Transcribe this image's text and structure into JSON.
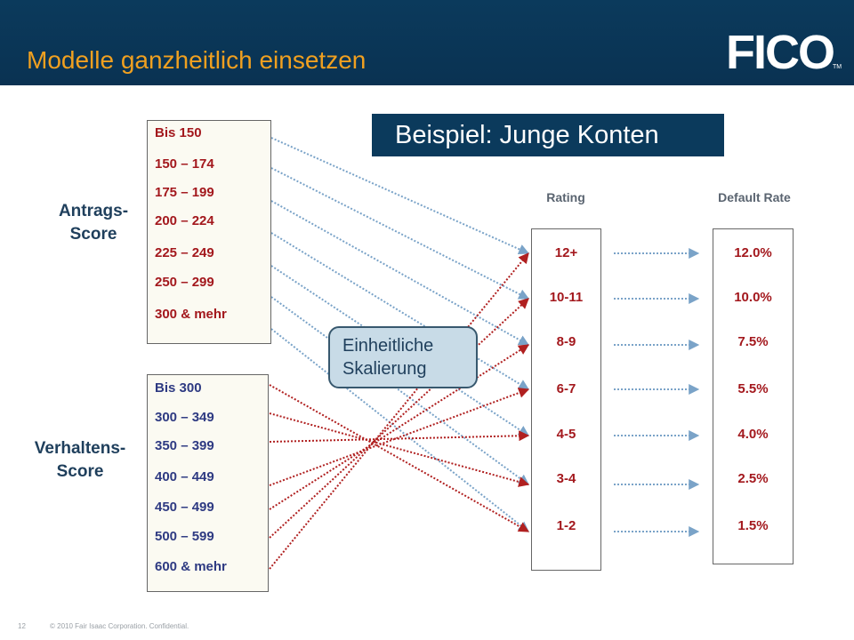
{
  "slide": {
    "title": "Modelle ganzheitlich einsetzen",
    "logo": "FICO",
    "logo_tm": "TM",
    "example_title": "Beispiel: Junge Konten",
    "center_label_line1": "Einheitliche",
    "center_label_line2": "Skalierung",
    "page_number": "12",
    "copyright": "© 2010  Fair Isaac Corporation.  Confidential."
  },
  "antrags": {
    "label_line1": "Antrags-",
    "label_line2": "Score",
    "items": [
      "Bis 150",
      "150 – 174",
      "175 – 199",
      "200 – 224",
      "225 – 249",
      "250 – 299",
      "300 & mehr"
    ]
  },
  "verhaltens": {
    "label_line1": "Verhaltens-",
    "label_line2": "Score",
    "items": [
      "Bis 300",
      "300 – 349",
      "350 – 399",
      "400 – 449",
      "450 – 499",
      "500 – 599",
      "600 & mehr"
    ]
  },
  "rating": {
    "header": "Rating",
    "items": [
      "12+",
      "10-11",
      "8-9",
      "6-7",
      "4-5",
      "3-4",
      "1-2"
    ]
  },
  "default_rate": {
    "header": "Default Rate",
    "items": [
      "12.0%",
      "10.0%",
      "7.5%",
      "5.5%",
      "4.0%",
      "2.5%",
      "1.5%"
    ]
  },
  "colors": {
    "header_bg": "#0b3a5c",
    "title": "#f0a020",
    "antrags_text": "#a3181d",
    "verhaltens_text": "#2e3a82",
    "blue_line": "#7aa3c8",
    "red_line": "#b02020"
  },
  "mappings": {
    "antrags_to_rating": [
      0,
      1,
      2,
      3,
      4,
      5,
      6
    ],
    "verhaltens_to_rating": [
      6,
      5,
      4,
      3,
      2,
      1,
      0
    ]
  }
}
